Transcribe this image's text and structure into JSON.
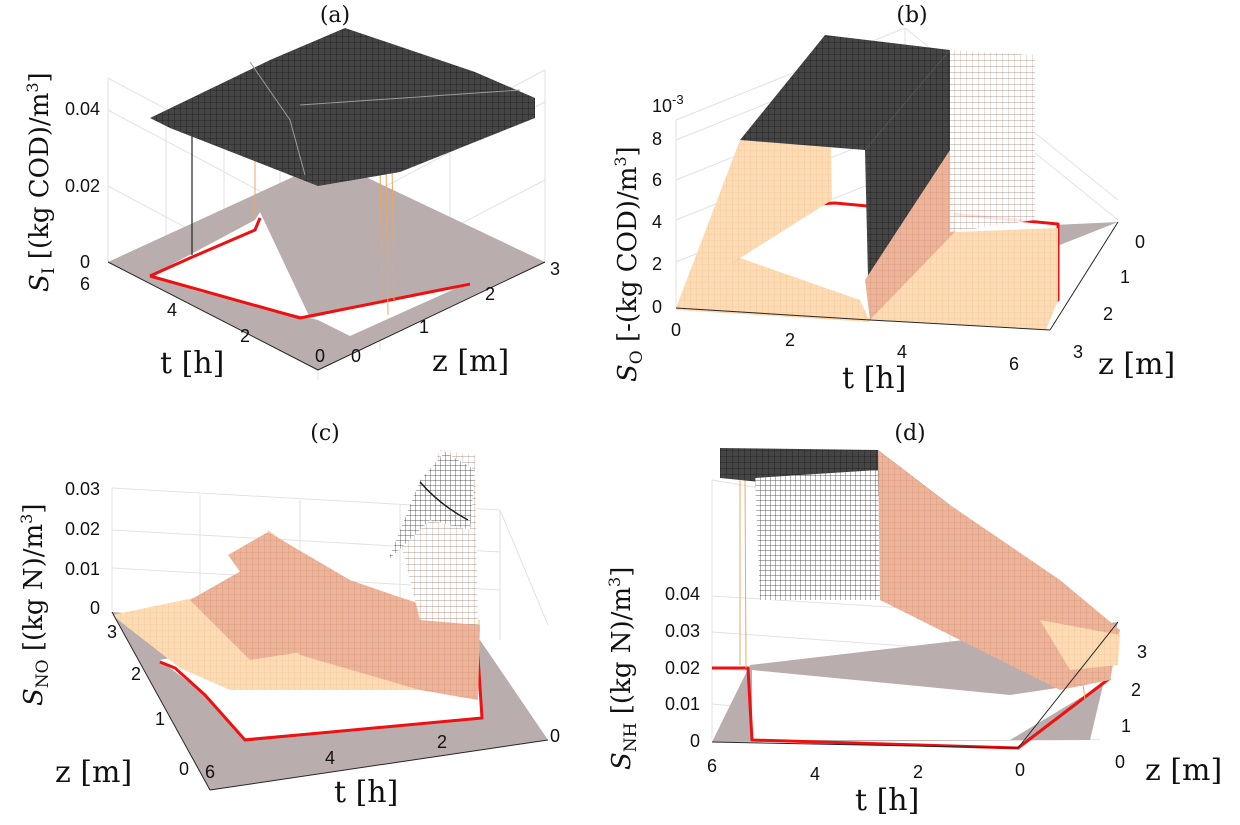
{
  "panels": [
    {
      "label": "(a)",
      "ylabel": "S_I [(kg COD)/m^3]",
      "ylabel_main": "S",
      "ylabel_sub": "I",
      "ylabel_rest": " [(kg COD)/m",
      "ylabel_sup": "3",
      "ylabel_end": "]",
      "zticks": [
        "0",
        "0.02",
        "0.04"
      ],
      "tticks": [
        "6",
        "4",
        "2",
        "0"
      ],
      "zaxis_ticks": [
        "0",
        "1",
        "2",
        "3"
      ],
      "tlabel": "t [h]",
      "zlabel": "z [m]"
    },
    {
      "label": "(b)",
      "ylabel_main": "S",
      "ylabel_sub": "O",
      "ylabel_rest": " [-(kg COD)/m",
      "ylabel_sup": "3",
      "ylabel_end": "]",
      "exponent": "10",
      "exponent_sup": "-3",
      "zticks": [
        "0",
        "2",
        "4",
        "6",
        "8"
      ],
      "tticks": [
        "0",
        "2",
        "4",
        "6"
      ],
      "zaxis_ticks": [
        "0",
        "1",
        "2",
        "3"
      ],
      "tlabel": "t [h]",
      "zlabel": "z [m]"
    },
    {
      "label": "(c)",
      "ylabel_main": "S",
      "ylabel_sub": "NO",
      "ylabel_rest": " [(kg N)/m",
      "ylabel_sup": "3",
      "ylabel_end": "]",
      "zticks": [
        "0",
        "0.01",
        "0.02",
        "0.03"
      ],
      "tticks": [
        "6",
        "4",
        "2",
        "0"
      ],
      "zaxis_ticks": [
        "0",
        "1",
        "2",
        "3"
      ],
      "tlabel": "t [h]",
      "zlabel": "z [m]"
    },
    {
      "label": "(d)",
      "ylabel_main": "S",
      "ylabel_sub": "NH",
      "ylabel_rest": " [(kg N)/m",
      "ylabel_sup": "3",
      "ylabel_end": "]",
      "zticks": [
        "0",
        "0.01",
        "0.02",
        "0.03",
        "0.04"
      ],
      "tticks": [
        "6",
        "4",
        "2",
        "0"
      ],
      "zaxis_ticks": [
        "0",
        "1",
        "2",
        "3"
      ],
      "tlabel": "t [h]",
      "zlabel": "z [m]"
    }
  ],
  "chart_data": [
    {
      "type": "surface",
      "title": "(a)",
      "xlabel": "t [h]",
      "ylabel": "z [m]",
      "zlabel": "S_I [(kg COD)/m^3]",
      "xlim": [
        0,
        6
      ],
      "ylim": [
        0,
        3
      ],
      "zlim": [
        0,
        0.04
      ],
      "note_values": {
        "surface_level_approx": 0.045
      }
    },
    {
      "type": "surface",
      "title": "(b)",
      "xlabel": "t [h]",
      "ylabel": "z [m]",
      "zlabel": "S_O [-(kg COD)/m^3]",
      "xlim": [
        0,
        6
      ],
      "ylim": [
        0,
        3
      ],
      "zlim": [
        0,
        0.008
      ],
      "scale": "10^-3"
    },
    {
      "type": "surface",
      "title": "(c)",
      "xlabel": "t [h]",
      "ylabel": "z [m]",
      "zlabel": "S_NO [(kg N)/m^3]",
      "xlim": [
        0,
        6
      ],
      "ylim": [
        0,
        3
      ],
      "zlim": [
        0,
        0.03
      ]
    },
    {
      "type": "surface",
      "title": "(d)",
      "xlabel": "t [h]",
      "ylabel": "z [m]",
      "zlabel": "S_NH [(kg N)/m^3]",
      "xlim": [
        0,
        6
      ],
      "ylim": [
        0,
        3
      ],
      "zlim": [
        0,
        0.04
      ]
    }
  ]
}
